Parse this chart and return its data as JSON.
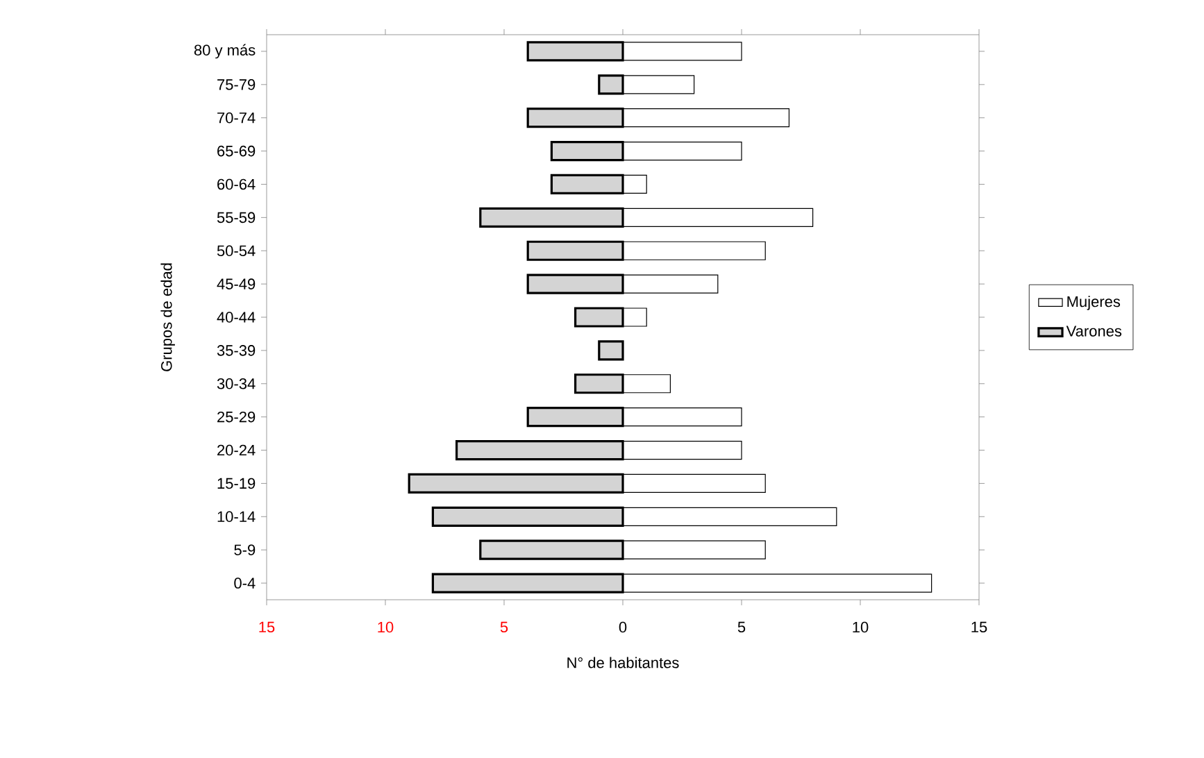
{
  "chart_data": {
    "type": "bar",
    "orientation": "horizontal",
    "xlabel": "N° de habitantes",
    "ylabel": "Grupos de edad",
    "categories": [
      "80 y más",
      "75-79",
      "70-74",
      "65-69",
      "60-64",
      "55-59",
      "50-54",
      "45-49",
      "40-44",
      "35-39",
      "30-34",
      "25-29",
      "20-24",
      "15-19",
      "10-14",
      "5-9",
      "0-4"
    ],
    "series": [
      {
        "name": "Mujeres",
        "color": "#ffffff",
        "values": [
          5,
          3,
          7,
          5,
          1,
          8,
          6,
          4,
          1,
          0,
          2,
          5,
          5,
          6,
          9,
          6,
          13
        ]
      },
      {
        "name": "Varones",
        "color": "#d4d4d4",
        "values": [
          -4,
          -1,
          -4,
          -3,
          -3,
          -6,
          -4,
          -4,
          -2,
          -1,
          -2,
          -4,
          -7,
          -9,
          -8,
          -6,
          -8
        ]
      }
    ],
    "xlim": [
      -15,
      15
    ],
    "xticks": [
      {
        "value": -15,
        "label": "15"
      },
      {
        "value": -10,
        "label": "10"
      },
      {
        "value": -5,
        "label": "5"
      },
      0,
      5,
      10,
      15
    ],
    "grid": false,
    "legend": "right",
    "stacked": true
  }
}
